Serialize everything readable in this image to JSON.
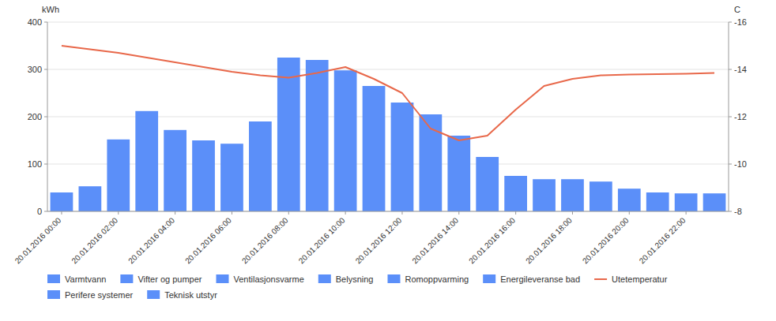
{
  "chart_data": {
    "type": "bar",
    "y_label": "kWh",
    "y2_label": "C",
    "categories": [
      "20.01.2016 00:00",
      null,
      "20.01.2016 02:00",
      null,
      "20.01.2016 04:00",
      null,
      "20.01.2016 06:00",
      null,
      "20.01.2016 08:00",
      null,
      "20.01.2016 10:00",
      null,
      "20.01.2016 12:00",
      null,
      "20.01.2016 14:00",
      null,
      "20.01.2016 16:00",
      null,
      "20.01.2016 18:00",
      null,
      "20.01.2016 20:00",
      null,
      "20.01.2016 22:00",
      null
    ],
    "series": [
      {
        "type": "bar",
        "values": [
          40,
          53,
          152,
          212,
          172,
          150,
          143,
          190,
          325,
          320,
          298,
          265,
          230,
          205,
          160,
          115,
          75,
          68,
          68,
          63,
          48,
          40,
          38,
          38
        ]
      },
      {
        "type": "line",
        "axis": "y2",
        "values": [
          -15.0,
          -14.85,
          -14.7,
          -14.5,
          -14.3,
          -14.1,
          -13.9,
          -13.75,
          -13.65,
          -13.85,
          -14.1,
          -13.6,
          -13.0,
          -11.5,
          -11.0,
          -11.2,
          -12.3,
          -13.3,
          -13.6,
          -13.75,
          -13.78,
          -13.8,
          -13.82,
          -13.85
        ]
      }
    ],
    "ylim": [
      0,
      400
    ],
    "yticks": [
      0,
      100,
      200,
      300,
      400
    ],
    "y2lim": [
      -8,
      -16
    ],
    "y2ticks": [
      -16,
      -14,
      -12,
      -10,
      -8
    ],
    "grid": true,
    "legend": "bottom",
    "legend_entries": [
      {
        "name": "Varmtvann",
        "type": "bar"
      },
      {
        "name": "Vifter og pumper",
        "type": "bar"
      },
      {
        "name": "Ventilasjonsvarme",
        "type": "bar"
      },
      {
        "name": "Belysning",
        "type": "bar"
      },
      {
        "name": "Romoppvarming",
        "type": "bar"
      },
      {
        "name": "Energileveranse bad",
        "type": "bar"
      },
      {
        "name": "Utetemperatur",
        "type": "line"
      },
      {
        "name": "Perifere systemer",
        "type": "bar"
      },
      {
        "name": "Teknisk utstyr",
        "type": "bar"
      }
    ]
  }
}
